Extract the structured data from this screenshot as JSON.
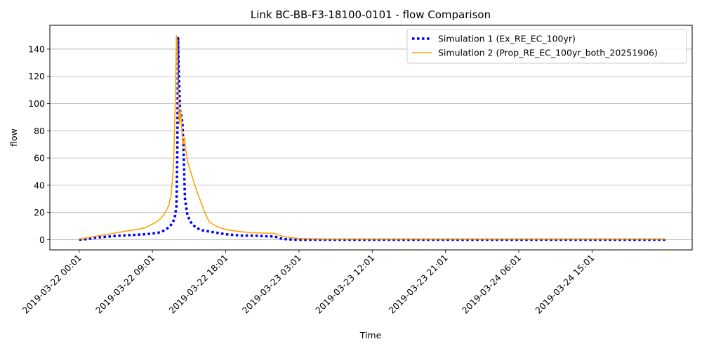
{
  "chart_data": {
    "type": "line",
    "title": "Link BC-BB-F3-18100-0101 - flow Comparison",
    "xlabel": "Time",
    "ylabel": "flow",
    "x_unit": "hours",
    "x_start_label": "2019-03-22 00:01",
    "xlim": [
      -3.6,
      75.3
    ],
    "ylim": [
      -7.5,
      157.5
    ],
    "y_ticks": [
      0,
      20,
      40,
      60,
      80,
      100,
      120,
      140
    ],
    "x_ticks": [
      0,
      9,
      18,
      27,
      36,
      45,
      54,
      63
    ],
    "x_tick_labels": [
      "2019-03-22 00:01",
      "2019-03-22 09:01",
      "2019-03-22 18:01",
      "2019-03-23 03:01",
      "2019-03-23 12:01",
      "2019-03-23 21:01",
      "2019-03-24 06:01",
      "2019-03-24 15:01"
    ],
    "grid": "y-major",
    "legend_position": "upper right",
    "series": [
      {
        "name": "Simulation 1 (Ex_RE_EC_100yr)",
        "color": "#0000ff",
        "style": "dotted",
        "x": [
          0,
          1,
          2,
          3,
          4,
          5,
          6,
          7,
          8,
          9,
          10,
          10.5,
          11,
          11.3,
          11.6,
          11.8,
          11.95,
          12.05,
          12.15,
          12.25,
          12.4,
          12.55,
          12.7,
          12.85,
          13,
          13.3,
          13.7,
          14.3,
          15,
          16,
          17,
          18,
          19,
          20,
          21,
          22,
          23,
          24,
          24.5,
          25,
          26,
          27,
          30,
          40,
          50,
          60,
          70,
          72
        ],
        "y": [
          0,
          0.5,
          1.5,
          2,
          2.5,
          3,
          3.3,
          3.6,
          4,
          4.5,
          5.5,
          7,
          9,
          11,
          14,
          18,
          25,
          60,
          148,
          120,
          95,
          91,
          85,
          60,
          30,
          18,
          13,
          9,
          7,
          6,
          5,
          4,
          3.5,
          3,
          3,
          2.8,
          2.5,
          2.3,
          1.5,
          0.5,
          0.2,
          0,
          0,
          0,
          0,
          0,
          0,
          0
        ]
      },
      {
        "name": "Simulation 2 (Prop_RE_EC_100yr_both_20251906)",
        "color": "#ffa500",
        "style": "solid",
        "x": [
          0,
          1,
          2,
          3,
          4,
          5,
          6,
          7,
          8,
          8.5,
          9,
          9.5,
          10,
          10.5,
          11,
          11.3,
          11.6,
          11.8,
          11.95,
          12.05,
          12.15,
          12.3,
          12.45,
          12.6,
          12.75,
          12.85,
          12.95,
          13.1,
          13.3,
          13.6,
          14,
          14.5,
          15,
          15.5,
          16,
          16.5,
          17,
          17.5,
          18,
          19,
          20,
          21,
          22,
          23,
          24,
          24.5,
          25,
          26,
          27,
          28,
          30,
          40,
          50,
          60,
          70,
          72
        ],
        "y": [
          0.5,
          1.5,
          2.5,
          3.5,
          4.5,
          5.5,
          6.5,
          7.5,
          8.5,
          10,
          11.5,
          13,
          15.5,
          19,
          25,
          33,
          55,
          100,
          150,
          145,
          110,
          85,
          95,
          82,
          70,
          72,
          75,
          66,
          58,
          52,
          44,
          35,
          27,
          19,
          13,
          11,
          9.5,
          8.5,
          7.5,
          6.5,
          5.8,
          5.2,
          5,
          4.8,
          4.6,
          3.5,
          2.5,
          1.5,
          1,
          0.8,
          0.5,
          0.5,
          0.5,
          0.5,
          0.5,
          0.5
        ]
      }
    ]
  }
}
